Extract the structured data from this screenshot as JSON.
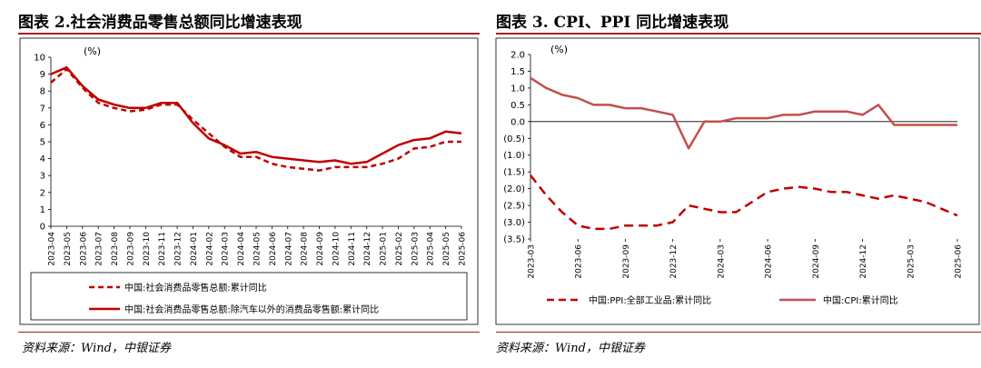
{
  "figures": {
    "left": {
      "title": "图表 2.社会消费品零售总额同比增速表现",
      "source": "资料来源：Wind，中银证券"
    },
    "right": {
      "title": "图表 3. CPI、PPI 同比增速表现",
      "source": "资料来源：Wind，中银证券"
    }
  },
  "colors": {
    "red": "#c00000",
    "cpi": "#c0504d",
    "axis": "#000000",
    "rule": "#a71e23"
  },
  "chart_data": [
    {
      "type": "line",
      "unit_label": "(%)",
      "ylim": [
        0,
        10
      ],
      "yticks": [
        "0",
        "1",
        "2",
        "3",
        "4",
        "5",
        "6",
        "7",
        "8",
        "9",
        "10"
      ],
      "categories": [
        "2023-04",
        "2023-05",
        "2023-06",
        "2023-07",
        "2023-08",
        "2023-09",
        "2023-10",
        "2023-11",
        "2023-12",
        "2024-01",
        "2024-02",
        "2024-03",
        "2024-04",
        "2024-05",
        "2024-06",
        "2024-07",
        "2024-08",
        "2024-09",
        "2024-10",
        "2024-11",
        "2024-12",
        "2025-01",
        "2025-02",
        "2025-03",
        "2025-04",
        "2025-05",
        "2025-06"
      ],
      "series": [
        {
          "name": "中国:社会消费品零售总额:累计同比",
          "style": "dashed",
          "values": [
            8.5,
            9.3,
            8.2,
            7.3,
            7.0,
            6.8,
            6.9,
            7.2,
            7.2,
            6.3,
            5.5,
            4.7,
            4.1,
            4.1,
            3.7,
            3.5,
            3.4,
            3.3,
            3.5,
            3.5,
            3.5,
            3.7,
            4.0,
            4.6,
            4.7,
            5.0,
            5.0
          ]
        },
        {
          "name": "中国:社会消费品零售总额:除汽车以外的消费品零售额:累计同比",
          "style": "solid",
          "values": [
            9.0,
            9.4,
            8.3,
            7.5,
            7.2,
            7.0,
            7.0,
            7.3,
            7.3,
            6.1,
            5.2,
            4.8,
            4.3,
            4.4,
            4.1,
            4.0,
            3.9,
            3.8,
            3.9,
            3.7,
            3.8,
            4.3,
            4.8,
            5.1,
            5.2,
            5.6,
            5.5
          ]
        }
      ]
    },
    {
      "type": "line",
      "unit_label": "(%)",
      "ylim": [
        -3.5,
        2.0
      ],
      "yticks": [
        "(3.5)",
        "(3.0)",
        "(2.5)",
        "(2.0)",
        "(1.5)",
        "(1.0)",
        "(0.5)",
        "0.0",
        "0.5",
        "1.0",
        "1.5",
        "2.0"
      ],
      "categories": [
        "2023-03",
        "2023-04",
        "2023-05",
        "2023-06",
        "2023-07",
        "2023-08",
        "2023-09",
        "2023-10",
        "2023-11",
        "2023-12",
        "2024-01",
        "2024-02",
        "2024-03",
        "2024-04",
        "2024-05",
        "2024-06",
        "2024-07",
        "2024-08",
        "2024-09",
        "2024-10",
        "2024-11",
        "2024-12",
        "2025-01",
        "2025-02",
        "2025-03",
        "2025-04",
        "2025-05",
        "2025-06"
      ],
      "xtick_labels": [
        "2023-03",
        "2023-06",
        "2023-09",
        "2023-12",
        "2024-03",
        "2024-06",
        "2024-09",
        "2024-12",
        "2025-03",
        "2025-06"
      ],
      "series": [
        {
          "name": "中国:PPI:全部工业品:累计同比",
          "style": "dashed",
          "values": [
            -1.6,
            -2.2,
            -2.7,
            -3.1,
            -3.2,
            -3.2,
            -3.1,
            -3.1,
            -3.1,
            -3.0,
            -2.5,
            -2.6,
            -2.7,
            -2.7,
            -2.4,
            -2.1,
            -2.0,
            -1.95,
            -2.0,
            -2.1,
            -2.1,
            -2.2,
            -2.3,
            -2.2,
            -2.3,
            -2.4,
            -2.6,
            -2.8
          ]
        },
        {
          "name": "中国:CPI:累计同比",
          "style": "solid",
          "values": [
            1.3,
            1.0,
            0.8,
            0.7,
            0.5,
            0.5,
            0.4,
            0.4,
            0.3,
            0.2,
            -0.8,
            0.0,
            0.0,
            0.1,
            0.1,
            0.1,
            0.2,
            0.2,
            0.3,
            0.3,
            0.3,
            0.2,
            0.5,
            -0.1,
            -0.1,
            -0.1,
            -0.1,
            -0.1
          ]
        }
      ]
    }
  ]
}
